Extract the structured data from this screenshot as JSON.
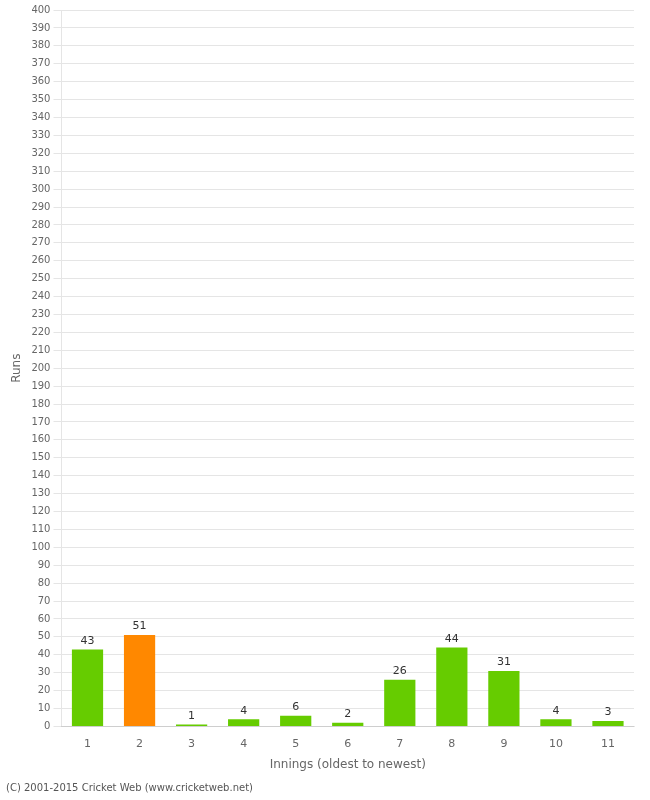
{
  "chart_data": {
    "type": "bar",
    "categories": [
      "1",
      "2",
      "3",
      "4",
      "5",
      "6",
      "7",
      "8",
      "9",
      "10",
      "11"
    ],
    "values": [
      43,
      51,
      1,
      4,
      6,
      2,
      26,
      44,
      31,
      4,
      3
    ],
    "colors": [
      "#66cc00",
      "#ff8800",
      "#66cc00",
      "#66cc00",
      "#66cc00",
      "#66cc00",
      "#66cc00",
      "#66cc00",
      "#66cc00",
      "#66cc00",
      "#66cc00"
    ],
    "x_label": "Innings (oldest to newest)",
    "y_label": "Runs",
    "ylim": [
      0,
      400
    ],
    "yticks": [
      0,
      10,
      20,
      30,
      40,
      50,
      60,
      70,
      80,
      90,
      100,
      110,
      120,
      130,
      140,
      150,
      160,
      170,
      180,
      190,
      200,
      210,
      220,
      230,
      240,
      250,
      260,
      270,
      280,
      290,
      300,
      310,
      320,
      330,
      340,
      350,
      360,
      370,
      380,
      390,
      400
    ],
    "grid": true,
    "data_labels": true,
    "annotations": [
      "(C) 2001-2015 Cricket Web (www.cricketweb.net)"
    ]
  }
}
